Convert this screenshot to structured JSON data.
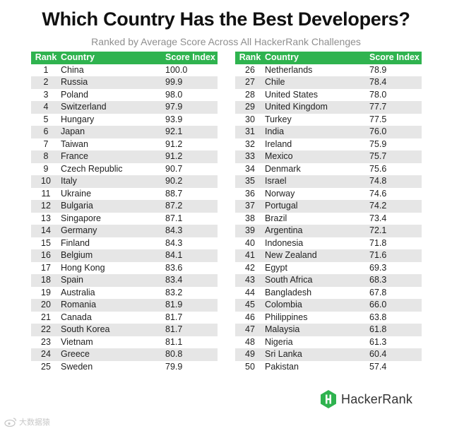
{
  "title": "Which Country Has the Best Developers?",
  "subtitle": "Ranked by Average Score Across All HackerRank Challenges",
  "colors": {
    "header": "#2fb34f",
    "stripe": "#e6e6e6",
    "logo": "#2fb34f"
  },
  "headers": {
    "rank": "Rank",
    "country": "Country",
    "score": "Score Index"
  },
  "chart_data": {
    "type": "table",
    "title": "Which Country Has the Best Developers?",
    "subtitle": "Ranked by Average Score Across All HackerRank Challenges",
    "columns": [
      "Rank",
      "Country",
      "Score Index"
    ],
    "rows": [
      [
        "1",
        "China",
        "100.0"
      ],
      [
        "2",
        "Russia",
        "99.9"
      ],
      [
        "3",
        "Poland",
        "98.0"
      ],
      [
        "4",
        "Switzerland",
        "97.9"
      ],
      [
        "5",
        "Hungary",
        "93.9"
      ],
      [
        "6",
        "Japan",
        "92.1"
      ],
      [
        "7",
        "Taiwan",
        "91.2"
      ],
      [
        "8",
        "France",
        "91.2"
      ],
      [
        "9",
        "Czech Republic",
        "90.7"
      ],
      [
        "10",
        "Italy",
        "90.2"
      ],
      [
        "11",
        "Ukraine",
        "88.7"
      ],
      [
        "12",
        "Bulgaria",
        "87.2"
      ],
      [
        "13",
        "Singapore",
        "87.1"
      ],
      [
        "14",
        "Germany",
        "84.3"
      ],
      [
        "15",
        "Finland",
        "84.3"
      ],
      [
        "16",
        "Belgium",
        "84.1"
      ],
      [
        "17",
        "Hong Kong",
        "83.6"
      ],
      [
        "18",
        "Spain",
        "83.4"
      ],
      [
        "19",
        "Australia",
        "83.2"
      ],
      [
        "20",
        "Romania",
        "81.9"
      ],
      [
        "21",
        "Canada",
        "81.7"
      ],
      [
        "22",
        "South Korea",
        "81.7"
      ],
      [
        "23",
        "Vietnam",
        "81.1"
      ],
      [
        "24",
        "Greece",
        "80.8"
      ],
      [
        "25",
        "Sweden",
        "79.9"
      ],
      [
        "26",
        "Netherlands",
        "78.9"
      ],
      [
        "27",
        "Chile",
        "78.4"
      ],
      [
        "28",
        "United States",
        "78.0"
      ],
      [
        "29",
        "United Kingdom",
        "77.7"
      ],
      [
        "30",
        "Turkey",
        "77.5"
      ],
      [
        "31",
        "India",
        "76.0"
      ],
      [
        "32",
        "Ireland",
        "75.9"
      ],
      [
        "33",
        "Mexico",
        "75.7"
      ],
      [
        "34",
        "Denmark",
        "75.6"
      ],
      [
        "35",
        "Israel",
        "74.8"
      ],
      [
        "36",
        "Norway",
        "74.6"
      ],
      [
        "37",
        "Portugal",
        "74.2"
      ],
      [
        "38",
        "Brazil",
        "73.4"
      ],
      [
        "39",
        "Argentina",
        "72.1"
      ],
      [
        "40",
        "Indonesia",
        "71.8"
      ],
      [
        "41",
        "New Zealand",
        "71.6"
      ],
      [
        "42",
        "Egypt",
        "69.3"
      ],
      [
        "43",
        "South Africa",
        "68.3"
      ],
      [
        "44",
        "Bangladesh",
        "67.8"
      ],
      [
        "45",
        "Colombia",
        "66.0"
      ],
      [
        "46",
        "Philippines",
        "63.8"
      ],
      [
        "47",
        "Malaysia",
        "61.8"
      ],
      [
        "48",
        "Nigeria",
        "61.3"
      ],
      [
        "49",
        "Sri Lanka",
        "60.4"
      ],
      [
        "50",
        "Pakistan",
        "57.4"
      ]
    ]
  },
  "logo": {
    "text": "HackerRank",
    "icon": "hackerrank-logo-icon"
  },
  "watermark": {
    "text": "大数据猿",
    "icon": "weibo-icon"
  }
}
